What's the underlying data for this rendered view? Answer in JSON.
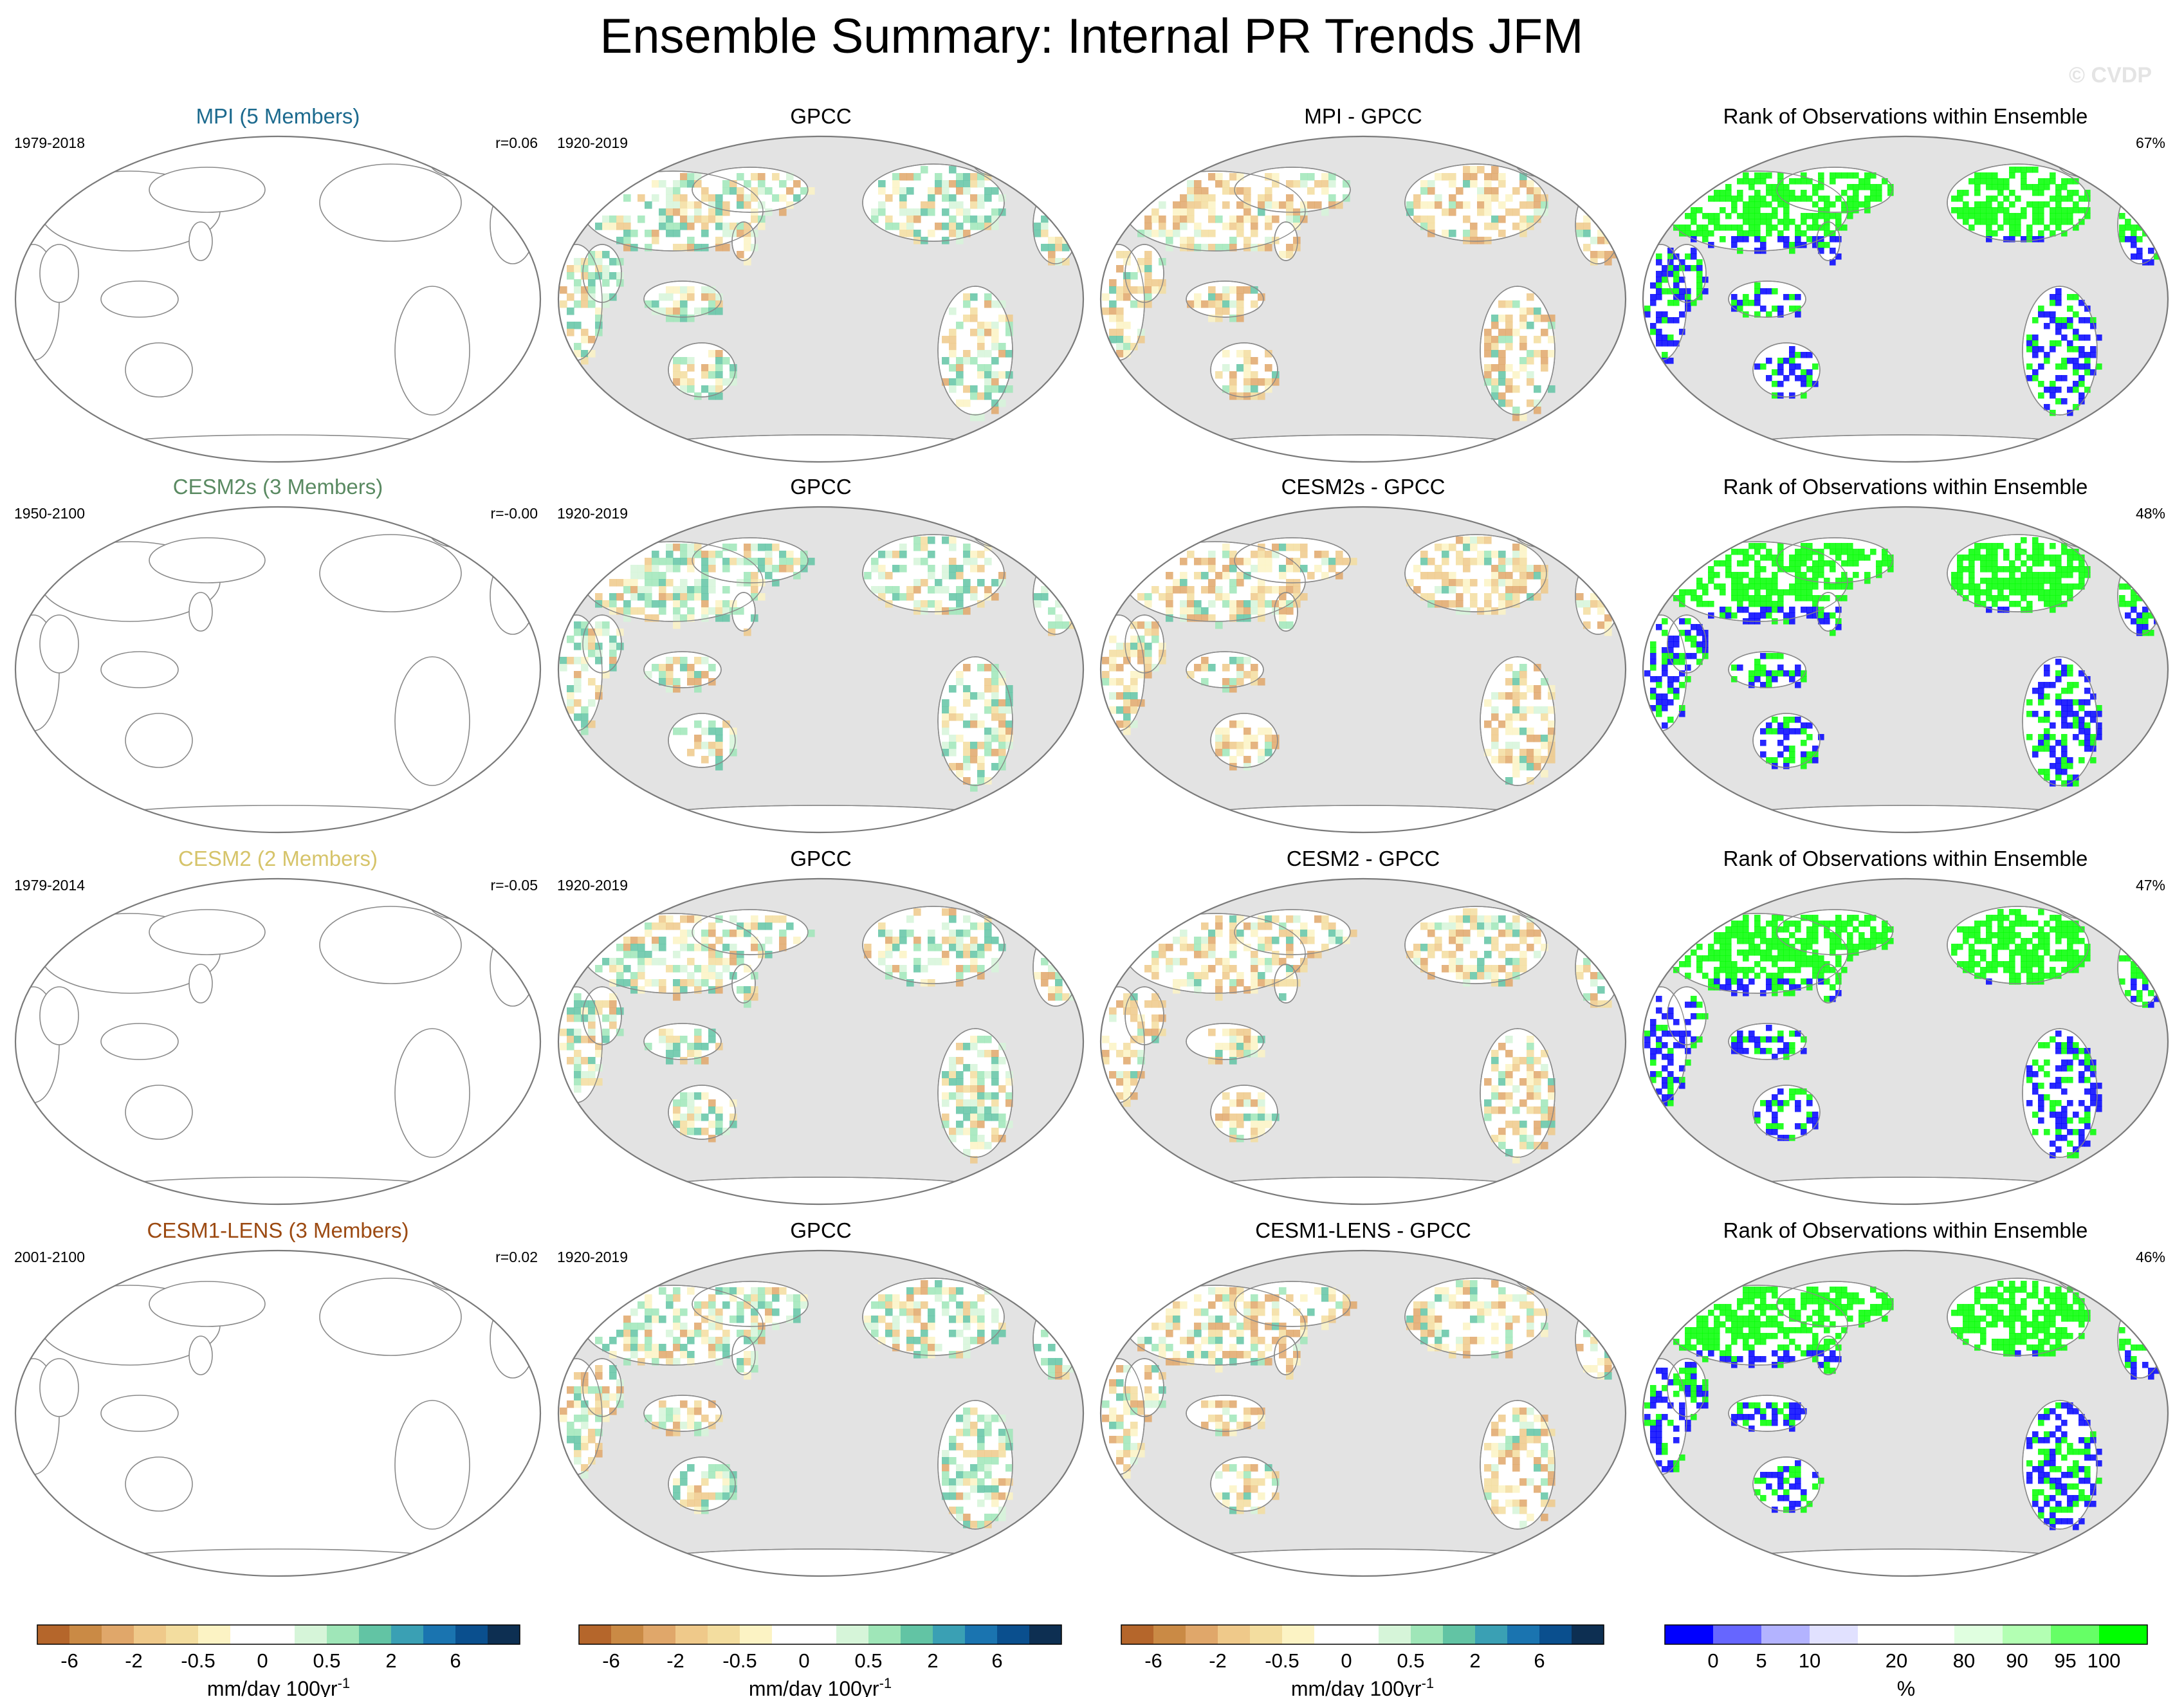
{
  "title": "Ensemble Summary: Internal PR Trends JFM",
  "watermark": "© CVDP",
  "colors": {
    "ocean": "#e3e3e3",
    "outline": "#7a7a7a",
    "coast": "#8a8a8a",
    "white_land": "#ffffff",
    "trend_colorbar": [
      "#b5662b",
      "#ca8a45",
      "#e0a76a",
      "#efc98a",
      "#f3dd9f",
      "#fcf3c4",
      "#ffffff",
      "#ffffff",
      "#d6f5d9",
      "#9fe6b8",
      "#62c4a4",
      "#3aa0b4",
      "#1a74b0",
      "#0a4f8e",
      "#0d2f52"
    ],
    "rank_colorbar": [
      "#0000ff",
      "#6666ff",
      "#b3b3ff",
      "#e1e1ff",
      "#ffffff",
      "#ffffff",
      "#e0ffe0",
      "#b3ffb3",
      "#66ff66",
      "#00ff00"
    ]
  },
  "chart_data": [
    {
      "row": 1,
      "panels": [
        {
          "type": "map",
          "variant": "empty",
          "title": "MPI (5 Members)",
          "title_color": "#1c6a8e",
          "left_label": "1979-2018",
          "right_label": "r=0.06"
        },
        {
          "type": "map",
          "variant": "obs",
          "title": "GPCC",
          "left_label": "1920-2019"
        },
        {
          "type": "map",
          "variant": "diff",
          "title": "MPI - GPCC"
        },
        {
          "type": "map",
          "variant": "rank",
          "title": "Rank of Observations within Ensemble",
          "right_label": "67%"
        }
      ]
    },
    {
      "row": 2,
      "panels": [
        {
          "type": "map",
          "variant": "empty",
          "title": "CESM2s (3 Members)",
          "title_color": "#5a8a62",
          "left_label": "1950-2100",
          "right_label": "r=-0.00"
        },
        {
          "type": "map",
          "variant": "obs",
          "title": "GPCC",
          "left_label": "1920-2019"
        },
        {
          "type": "map",
          "variant": "diff",
          "title": "CESM2s - GPCC"
        },
        {
          "type": "map",
          "variant": "rank",
          "title": "Rank of Observations within Ensemble",
          "right_label": "48%"
        }
      ]
    },
    {
      "row": 3,
      "panels": [
        {
          "type": "map",
          "variant": "empty",
          "title": "CESM2 (2 Members)",
          "title_color": "#d6c46a",
          "left_label": "1979-2014",
          "right_label": "r=-0.05"
        },
        {
          "type": "map",
          "variant": "obs",
          "title": "GPCC",
          "left_label": "1920-2019"
        },
        {
          "type": "map",
          "variant": "diff",
          "title": "CESM2 - GPCC"
        },
        {
          "type": "map",
          "variant": "rank",
          "title": "Rank of Observations within Ensemble",
          "right_label": "47%"
        }
      ]
    },
    {
      "row": 4,
      "panels": [
        {
          "type": "map",
          "variant": "empty",
          "title": "CESM1-LENS (3 Members)",
          "title_color": "#9c4a12",
          "left_label": "2001-2100",
          "right_label": "r=0.02"
        },
        {
          "type": "map",
          "variant": "obs",
          "title": "GPCC",
          "left_label": "1920-2019"
        },
        {
          "type": "map",
          "variant": "diff",
          "title": "CESM1-LENS - GPCC"
        },
        {
          "type": "map",
          "variant": "rank",
          "title": "Rank of Observations within Ensemble",
          "right_label": "46%"
        }
      ]
    }
  ],
  "colorbars": [
    {
      "kind": "trend",
      "ticks": [
        "-6",
        "-2",
        "-0.5",
        "0",
        "0.5",
        "2",
        "6"
      ],
      "label": "mm/day 100yr",
      "label_sup": "-1"
    },
    {
      "kind": "trend",
      "ticks": [
        "-6",
        "-2",
        "-0.5",
        "0",
        "0.5",
        "2",
        "6"
      ],
      "label": "mm/day 100yr",
      "label_sup": "-1"
    },
    {
      "kind": "trend",
      "ticks": [
        "-6",
        "-2",
        "-0.5",
        "0",
        "0.5",
        "2",
        "6"
      ],
      "label": "mm/day 100yr",
      "label_sup": "-1"
    },
    {
      "kind": "rank",
      "ticks": [
        "0",
        "5",
        "10",
        "20",
        "80",
        "90",
        "95",
        "100"
      ],
      "label": "%",
      "label_sup": ""
    }
  ]
}
